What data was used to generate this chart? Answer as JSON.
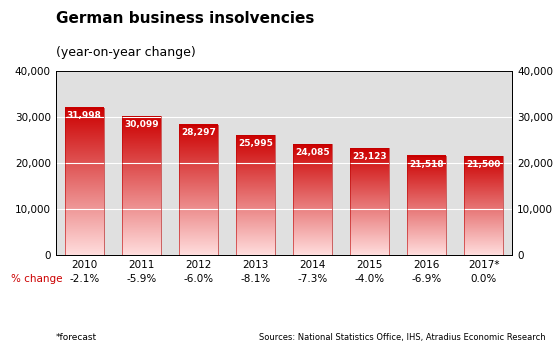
{
  "title": "German business insolvencies",
  "subtitle": "(year-on-year change)",
  "categories": [
    "2010",
    "2011",
    "2012",
    "2013",
    "2014",
    "2015",
    "2016",
    "2017*"
  ],
  "values": [
    31998,
    30099,
    28297,
    25995,
    24085,
    23123,
    21518,
    21500
  ],
  "pct_change": [
    "-2.1%",
    "-5.9%",
    "-6.0%",
    "-8.1%",
    "-7.3%",
    "-4.0%",
    "-6.9%",
    "0.0%"
  ],
  "bar_color_top": "#cc0000",
  "bar_color_bottom": "#ffdddd",
  "ylim": [
    0,
    40000
  ],
  "yticks": [
    0,
    10000,
    20000,
    30000,
    40000
  ],
  "plot_bg": "#e0e0e0",
  "title_fontsize": 11,
  "subtitle_fontsize": 9,
  "tick_fontsize": 7.5,
  "label_fontsize": 7.5,
  "pct_fontsize": 7.5,
  "footnote": "*forecast",
  "source": "Sources: National Statistics Office, IHS, Atradius Economic Research",
  "bar_width": 0.68
}
